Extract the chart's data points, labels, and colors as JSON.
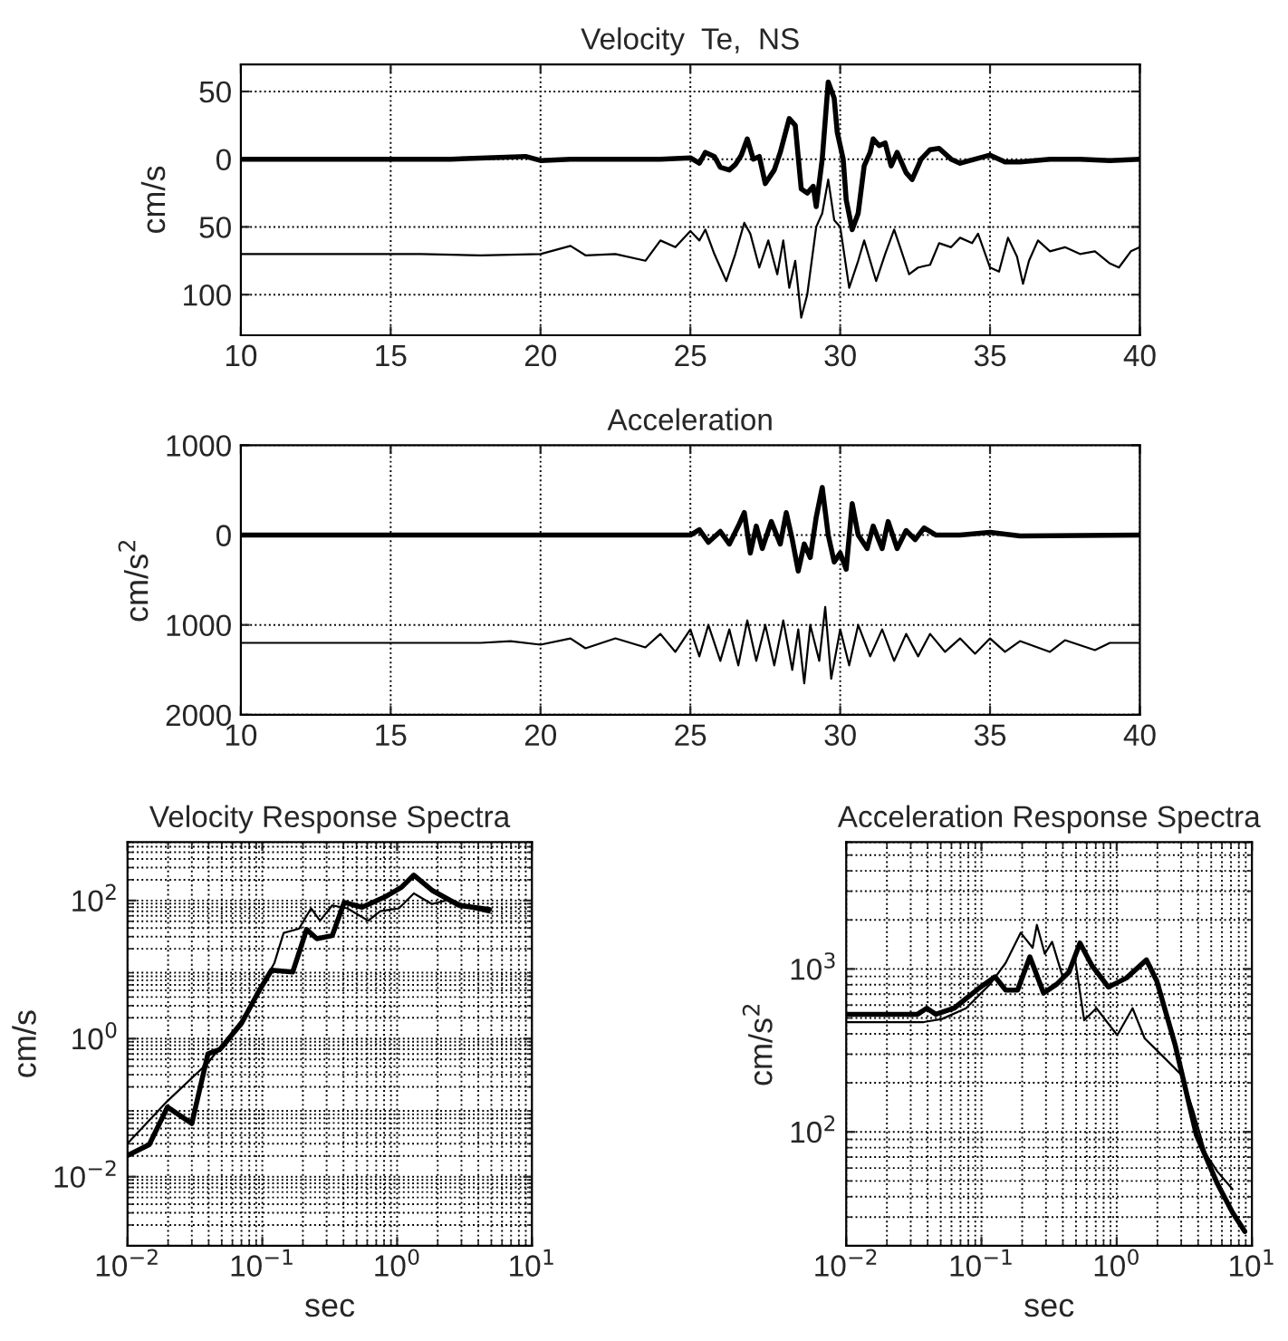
{
  "chart_data": [
    {
      "type": "line",
      "title": "Velocity  Te,  NS",
      "ylabel": "cm/s",
      "xlim": [
        10,
        40
      ],
      "xticks": [
        10,
        15,
        20,
        25,
        30,
        35,
        40
      ],
      "ylim": [
        -130,
        70
      ],
      "yticks": [
        {
          "value": -100,
          "label": "100"
        },
        {
          "value": -50,
          "label": "50"
        },
        0,
        50
      ],
      "grid": true,
      "line_style": "solid",
      "marker": "none",
      "series": [
        {
          "color": "#000000",
          "x": [
            10,
            15,
            17,
            19.5,
            20,
            21,
            24,
            25,
            25.3,
            25.5,
            25.8,
            26,
            26.3,
            26.5,
            26.7,
            26.9,
            27.1,
            27.3,
            27.5,
            27.8,
            28.0,
            28.3,
            28.5,
            28.7,
            28.9,
            29.1,
            29.2,
            29.4,
            29.6,
            29.8,
            29.9,
            30.1,
            30.2,
            30.4,
            30.6,
            30.8,
            31.0,
            31.1,
            31.3,
            31.5,
            31.7,
            31.9,
            32.2,
            32.4,
            32.7,
            33.0,
            33.3,
            33.7,
            34.0,
            34.5,
            35.0,
            35.5,
            36,
            37,
            38,
            39,
            40
          ],
          "values": [
            0,
            0,
            0,
            2,
            -1,
            0,
            0,
            1,
            -3,
            5,
            2,
            -6,
            -8,
            -4,
            3,
            15,
            0,
            2,
            -18,
            -8,
            5,
            30,
            25,
            -22,
            -25,
            -20,
            -35,
            0,
            57,
            45,
            20,
            0,
            -30,
            -52,
            -40,
            -5,
            5,
            15,
            10,
            12,
            -5,
            5,
            -10,
            -15,
            0,
            7,
            8,
            0,
            -3,
            0,
            3,
            -2,
            -2,
            0,
            0,
            -1,
            0
          ]
        },
        {
          "color": "#000000",
          "x": [
            10,
            16,
            18,
            20,
            21,
            21.5,
            22.5,
            23.5,
            24,
            24.5,
            25,
            25.3,
            25.5,
            25.8,
            26.2,
            26.5,
            26.8,
            27.0,
            27.3,
            27.6,
            27.9,
            28.1,
            28.3,
            28.5,
            28.7,
            28.9,
            29.2,
            29.4,
            29.6,
            29.8,
            30.0,
            30.3,
            30.6,
            30.8,
            31.2,
            31.5,
            31.8,
            32.0,
            32.3,
            32.6,
            33.0,
            33.3,
            33.7,
            34.0,
            34.4,
            34.6,
            35.0,
            35.3,
            35.6,
            35.9,
            36.1,
            36.3,
            36.6,
            37.0,
            37.5,
            38,
            38.5,
            39,
            39.3,
            39.7,
            40
          ],
          "values": [
            -70,
            -70,
            -71,
            -70,
            -64,
            -71,
            -70,
            -75,
            -60,
            -65,
            -53,
            -60,
            -52,
            -70,
            -90,
            -70,
            -47,
            -55,
            -80,
            -60,
            -85,
            -60,
            -95,
            -75,
            -117,
            -100,
            -50,
            -40,
            -15,
            -45,
            -50,
            -95,
            -75,
            -60,
            -90,
            -70,
            -52,
            -65,
            -85,
            -80,
            -78,
            -62,
            -65,
            -58,
            -62,
            -55,
            -80,
            -83,
            -58,
            -72,
            -92,
            -75,
            -60,
            -68,
            -65,
            -70,
            -68,
            -77,
            -80,
            -68,
            -65
          ]
        }
      ]
    },
    {
      "type": "line",
      "title": "Acceleration",
      "ylabel": "cm/s$^{2}$",
      "xlim": [
        10,
        40
      ],
      "xticks": [
        10,
        15,
        20,
        25,
        30,
        35,
        40
      ],
      "ylim": [
        -2000,
        1000
      ],
      "yticks": [
        {
          "value": -2000,
          "label": "2000"
        },
        {
          "value": -1000,
          "label": "1000"
        },
        0,
        1000
      ],
      "grid": true,
      "line_style": "solid",
      "marker": "none",
      "series": [
        {
          "color": "#000000",
          "x": [
            10,
            25,
            25.3,
            25.6,
            26,
            26.3,
            26.6,
            26.8,
            27.0,
            27.2,
            27.4,
            27.7,
            28.0,
            28.2,
            28.4,
            28.6,
            28.8,
            29.0,
            29.2,
            29.4,
            29.6,
            29.8,
            30.0,
            30.2,
            30.4,
            30.6,
            30.9,
            31.1,
            31.4,
            31.6,
            31.9,
            32.2,
            32.5,
            32.8,
            33.2,
            34,
            35,
            36,
            40
          ],
          "values": [
            0,
            0,
            60,
            -80,
            40,
            -100,
            100,
            250,
            -200,
            100,
            -150,
            150,
            -100,
            250,
            -50,
            -400,
            -100,
            -250,
            200,
            530,
            0,
            -300,
            -200,
            -380,
            350,
            0,
            -150,
            100,
            -150,
            150,
            -150,
            50,
            -50,
            80,
            0,
            0,
            30,
            -10,
            0
          ]
        },
        {
          "color": "#000000",
          "x": [
            10,
            18,
            19,
            20,
            21,
            21.5,
            22.5,
            23.5,
            24,
            24.5,
            25,
            25.3,
            25.6,
            26.0,
            26.3,
            26.6,
            26.9,
            27.2,
            27.5,
            27.8,
            28.1,
            28.4,
            28.6,
            28.8,
            29.0,
            29.3,
            29.5,
            29.7,
            30.0,
            30.3,
            30.6,
            31.0,
            31.4,
            31.8,
            32.2,
            32.6,
            33.0,
            33.5,
            34,
            34.5,
            35,
            35.5,
            36,
            37,
            37.5,
            38.5,
            39,
            40
          ],
          "values": [
            -1200,
            -1200,
            -1180,
            -1220,
            -1150,
            -1260,
            -1150,
            -1250,
            -1100,
            -1300,
            -1050,
            -1350,
            -1000,
            -1400,
            -1050,
            -1450,
            -950,
            -1400,
            -1000,
            -1450,
            -950,
            -1500,
            -1050,
            -1650,
            -1000,
            -1400,
            -800,
            -1600,
            -1050,
            -1450,
            -1000,
            -1350,
            -1050,
            -1400,
            -1100,
            -1350,
            -1100,
            -1300,
            -1150,
            -1320,
            -1150,
            -1300,
            -1180,
            -1300,
            -1170,
            -1280,
            -1200,
            -1200
          ]
        }
      ]
    },
    {
      "type": "line",
      "title": "Velocity Response Spectra",
      "xlabel": "sec",
      "ylabel": "cm/s",
      "log": "xy",
      "xlim": [
        0.01,
        10
      ],
      "xticks": [
        {
          "value": 0.01,
          "label": "10$^{−2}$"
        },
        {
          "value": 0.1,
          "label": "10$^{−1}$"
        },
        {
          "value": 1,
          "label": "10$^{0}$"
        },
        {
          "value": 10,
          "label": "10$^{1}$"
        }
      ],
      "ylim": [
        0.001,
        700
      ],
      "yticks": [
        {
          "value": 0.01,
          "label": "10$^{−2}$"
        },
        {
          "value": 1,
          "label": "10$^{0}$"
        },
        {
          "value": 100,
          "label": "10$^{2}$"
        }
      ],
      "grid": true,
      "line_style": "solid",
      "marker": "none",
      "series": [
        {
          "color": "#000000",
          "x": [
            0.01,
            0.0145,
            0.0198,
            0.03,
            0.0395,
            0.0486,
            0.07,
            0.095,
            0.117,
            0.168,
            0.213,
            0.254,
            0.33,
            0.405,
            0.55,
            0.83,
            1.08,
            1.33,
            1.81,
            2.89,
            4.84
          ],
          "values": [
            0.0203,
            0.0292,
            0.102,
            0.059,
            0.6,
            0.7,
            1.66,
            5.0,
            9.8,
            9.2,
            38,
            28,
            31,
            94,
            80,
            115,
            156,
            233,
            141,
            85,
            74
          ]
        },
        {
          "color": "#000000",
          "x": [
            0.01,
            0.0198,
            0.0395,
            0.07,
            0.095,
            0.123,
            0.144,
            0.187,
            0.23,
            0.268,
            0.33,
            0.427,
            0.61,
            0.75,
            1.03,
            1.33,
            1.81,
            2.47,
            3.56,
            4.84
          ],
          "values": [
            0.0303,
            0.125,
            0.446,
            1.83,
            5.0,
            12.5,
            34,
            39,
            77,
            51,
            85,
            77,
            51,
            70,
            77,
            127,
            89,
            104,
            77,
            67
          ]
        }
      ]
    },
    {
      "type": "line",
      "title": "Acceleration Response Spectra",
      "xlabel": "sec",
      "ylabel": "cm/s$^{2}$",
      "log": "xy",
      "xlim": [
        0.01,
        10
      ],
      "xticks": [
        {
          "value": 0.01,
          "label": "10$^{−2}$"
        },
        {
          "value": 0.1,
          "label": "10$^{−1}$"
        },
        {
          "value": 1,
          "label": "10$^{0}$"
        },
        {
          "value": 10,
          "label": "10$^{1}$"
        }
      ],
      "ylim": [
        20,
        6000
      ],
      "yticks": [
        {
          "value": 100,
          "label": "10$^{2}$"
        },
        {
          "value": 1000,
          "label": "10$^{3}$"
        }
      ],
      "grid": true,
      "line_style": "solid",
      "marker": "none",
      "series": [
        {
          "color": "#000000",
          "x": [
            0.01,
            0.0337,
            0.0394,
            0.046,
            0.0627,
            0.0946,
            0.126,
            0.151,
            0.185,
            0.228,
            0.288,
            0.361,
            0.444,
            0.535,
            0.658,
            0.869,
            1.18,
            1.66,
            1.98,
            2.7,
            3.88,
            5.56,
            7.19,
            8.85
          ],
          "values": [
            527,
            527,
            574,
            527,
            574,
            755,
            895,
            741,
            741,
            1186,
            711,
            807,
            958,
            1443,
            1044,
            774,
            880,
            1136,
            843,
            344,
            96,
            48,
            32,
            24.5
          ]
        },
        {
          "color": "#000000",
          "x": [
            0.01,
            0.0374,
            0.051,
            0.077,
            0.116,
            0.151,
            0.195,
            0.239,
            0.257,
            0.294,
            0.333,
            0.401,
            0.493,
            0.575,
            0.708,
            1.01,
            1.31,
            1.61,
            2.32,
            2.99,
            3.68,
            4.53,
            5.56,
            7.19
          ],
          "values": [
            472,
            472,
            493,
            574,
            807,
            1089,
            1668,
            1348,
            1864,
            1238,
            1468,
            880,
            1136,
            484,
            574,
            392,
            574,
            375,
            278,
            225,
            135,
            74,
            57,
            44.5
          ]
        }
      ]
    }
  ]
}
